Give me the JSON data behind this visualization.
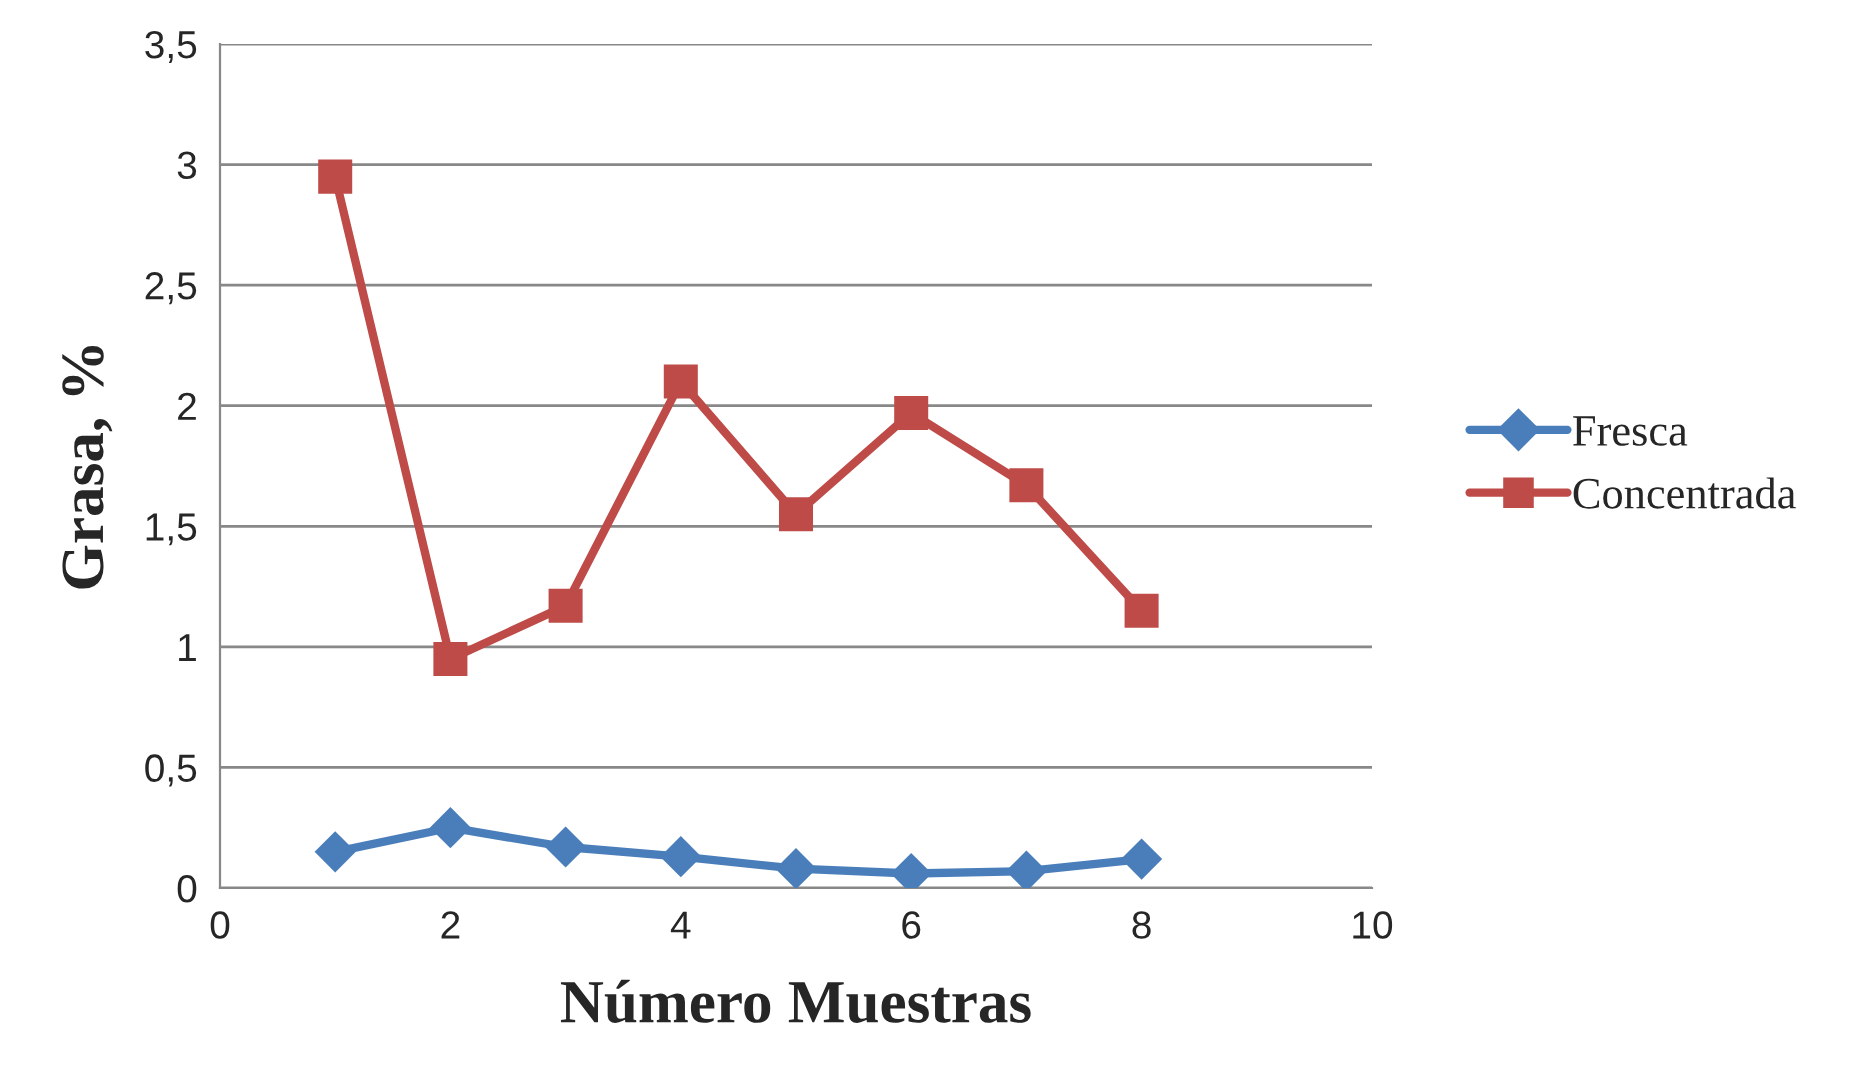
{
  "chart_data": {
    "type": "line",
    "xlabel": "Número Muestras",
    "ylabel": "Grasa, %",
    "x": [
      1,
      2,
      3,
      4,
      5,
      6,
      7,
      8
    ],
    "series": [
      {
        "name": "Fresca",
        "color": "#4a7ebb",
        "marker": "diamond",
        "values": [
          0.15,
          0.25,
          0.17,
          0.13,
          0.08,
          0.06,
          0.07,
          0.12
        ]
      },
      {
        "name": "Concentrada",
        "color": "#be4b48",
        "marker": "square",
        "values": [
          2.95,
          0.95,
          1.17,
          2.1,
          1.55,
          1.97,
          1.67,
          1.15
        ]
      }
    ],
    "xlim": [
      0,
      10
    ],
    "xticks": [
      0,
      2,
      4,
      6,
      8,
      10
    ],
    "ylim": [
      0,
      3.5
    ],
    "yticks": [
      {
        "value": 0,
        "label": "0"
      },
      {
        "value": 0.5,
        "label": "0,5"
      },
      {
        "value": 1,
        "label": "1"
      },
      {
        "value": 1.5,
        "label": "1,5"
      },
      {
        "value": 2,
        "label": "2"
      },
      {
        "value": 2.5,
        "label": "2,5"
      },
      {
        "value": 3,
        "label": "3"
      },
      {
        "value": 3.5,
        "label": "3,5"
      }
    ],
    "grid": "y",
    "legend": "right",
    "line_style": "solid"
  }
}
